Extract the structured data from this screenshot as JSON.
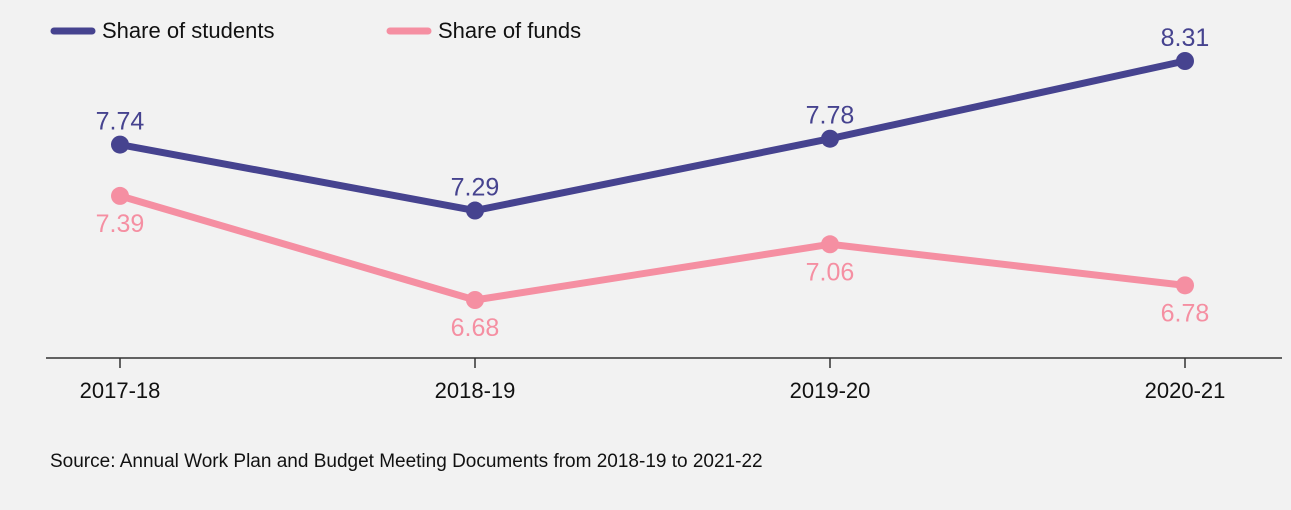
{
  "chart_data": {
    "type": "line",
    "title": "",
    "xlabel": "",
    "ylabel": "",
    "categories": [
      "2017-18",
      "2018-19",
      "2019-20",
      "2020-21"
    ],
    "series": [
      {
        "name": "Share of students",
        "color": "#46438f",
        "values": [
          7.74,
          7.29,
          7.78,
          8.31
        ]
      },
      {
        "name": "Share of funds",
        "color": "#f58fa2",
        "values": [
          7.39,
          6.68,
          7.06,
          6.78
        ]
      }
    ],
    "ylim": [
      6.24,
      8.39
    ],
    "grid": false,
    "legend": "top-left",
    "source": "Source: Annual Work Plan and Budget Meeting Documents from 2018-19 to 2021-22"
  }
}
